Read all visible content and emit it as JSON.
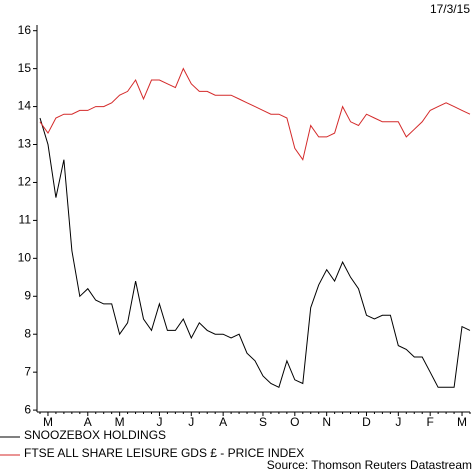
{
  "chart_data": {
    "type": "line",
    "date": "17/3/15",
    "source": "Source: Thomson Reuters Datastream",
    "categories": [
      null,
      "M",
      null,
      null,
      null,
      null,
      "A",
      null,
      null,
      null,
      "M",
      null,
      null,
      null,
      null,
      "J",
      null,
      null,
      null,
      "J",
      null,
      null,
      null,
      "A",
      null,
      null,
      null,
      null,
      "S",
      null,
      null,
      null,
      "O",
      null,
      null,
      null,
      "N",
      null,
      null,
      null,
      null,
      "D",
      null,
      null,
      null,
      "J",
      null,
      null,
      null,
      "F",
      null,
      null,
      null,
      "M",
      null
    ],
    "series": [
      {
        "name": "SNOOZEBOX HOLDINGS",
        "color": "#000000",
        "values": [
          13.7,
          13.0,
          11.6,
          12.6,
          10.2,
          9.0,
          9.2,
          8.9,
          8.8,
          8.8,
          8.0,
          8.3,
          9.4,
          8.4,
          8.1,
          8.8,
          8.1,
          8.1,
          8.4,
          7.9,
          8.3,
          8.1,
          8.0,
          8.0,
          7.9,
          8.0,
          7.5,
          7.3,
          6.9,
          6.7,
          6.6,
          7.3,
          6.8,
          6.7,
          8.7,
          9.3,
          9.7,
          9.4,
          9.9,
          9.5,
          9.2,
          8.5,
          8.4,
          8.5,
          8.5,
          7.7,
          7.6,
          7.4,
          7.4,
          7.0,
          6.6,
          6.6,
          6.6,
          8.2,
          8.1
        ]
      },
      {
        "name": "FTSE ALL SHARE LEISURE GDS £ - PRICE INDEX",
        "color": "#d42a2a",
        "values": [
          13.6,
          13.3,
          13.7,
          13.8,
          13.8,
          13.9,
          13.9,
          14.0,
          14.0,
          14.1,
          14.3,
          14.4,
          14.7,
          14.2,
          14.7,
          14.7,
          14.6,
          14.5,
          15.0,
          14.6,
          14.4,
          14.4,
          14.3,
          14.3,
          14.3,
          14.2,
          14.1,
          14.0,
          13.9,
          13.8,
          13.8,
          13.7,
          12.9,
          12.6,
          13.5,
          13.2,
          13.2,
          13.3,
          14.0,
          13.6,
          13.5,
          13.8,
          13.7,
          13.6,
          13.6,
          13.6,
          13.2,
          13.4,
          13.6,
          13.9,
          14.0,
          14.1,
          14.0,
          13.9,
          13.8
        ]
      }
    ],
    "ylim": [
      5.95,
      16.15
    ],
    "yticks": [
      6,
      7,
      8,
      9,
      10,
      11,
      12,
      13,
      14,
      15,
      16
    ]
  }
}
